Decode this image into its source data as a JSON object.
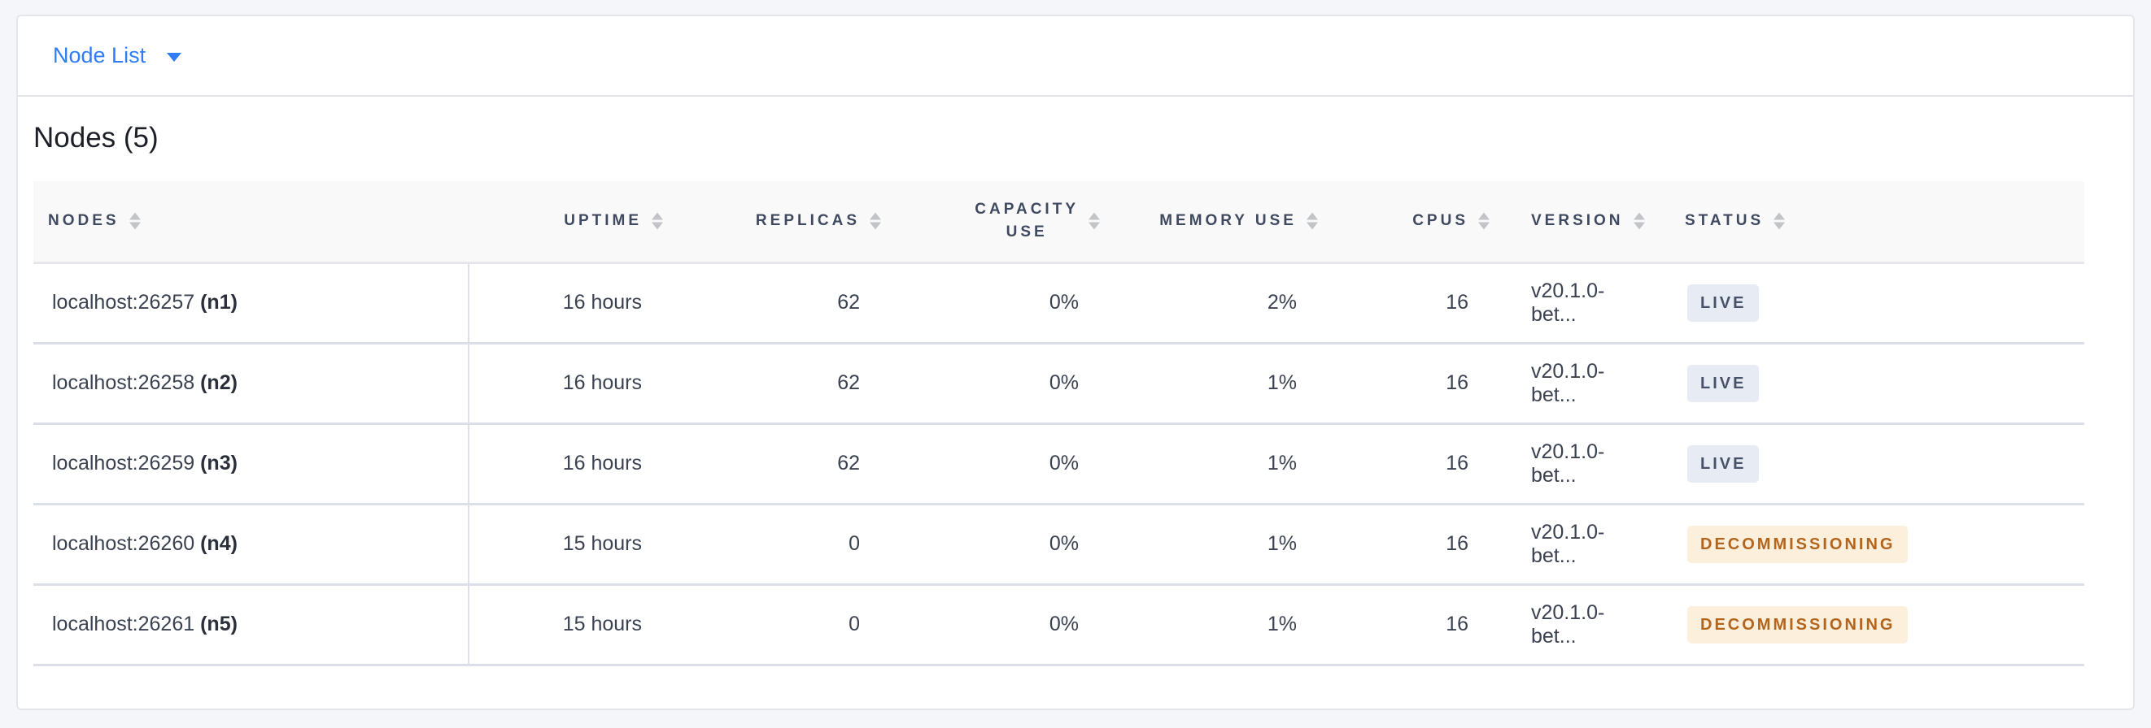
{
  "header": {
    "dropdown_label": "Node List",
    "dropdown_icon": "caret-down-icon"
  },
  "section_title": "Nodes (5)",
  "columns": [
    "NODES",
    "UPTIME",
    "REPLICAS",
    "CAPACITY USE",
    "MEMORY USE",
    "CPUS",
    "VERSION",
    "STATUS"
  ],
  "rows": [
    {
      "address": "localhost:26257",
      "id": "(n1)",
      "uptime": "16 hours",
      "replicas": "62",
      "capacity": "0%",
      "memory": "2%",
      "cpus": "16",
      "version": "v20.1.0-bet...",
      "status": "LIVE"
    },
    {
      "address": "localhost:26258",
      "id": "(n2)",
      "uptime": "16 hours",
      "replicas": "62",
      "capacity": "0%",
      "memory": "1%",
      "cpus": "16",
      "version": "v20.1.0-bet...",
      "status": "LIVE"
    },
    {
      "address": "localhost:26259",
      "id": "(n3)",
      "uptime": "16 hours",
      "replicas": "62",
      "capacity": "0%",
      "memory": "1%",
      "cpus": "16",
      "version": "v20.1.0-bet...",
      "status": "LIVE"
    },
    {
      "address": "localhost:26260",
      "id": "(n4)",
      "uptime": "15 hours",
      "replicas": "0",
      "capacity": "0%",
      "memory": "1%",
      "cpus": "16",
      "version": "v20.1.0-bet...",
      "status": "DECOMMISSIONING"
    },
    {
      "address": "localhost:26261",
      "id": "(n5)",
      "uptime": "15 hours",
      "replicas": "0",
      "capacity": "0%",
      "memory": "1%",
      "cpus": "16",
      "version": "v20.1.0-bet...",
      "status": "DECOMMISSIONING"
    }
  ],
  "colors": {
    "accent": "#2f7df6",
    "live_bg": "#e7ebf3",
    "live_text": "#475268",
    "decommissioning_bg": "#fcf0dc",
    "decommissioning_text": "#b3651e"
  }
}
